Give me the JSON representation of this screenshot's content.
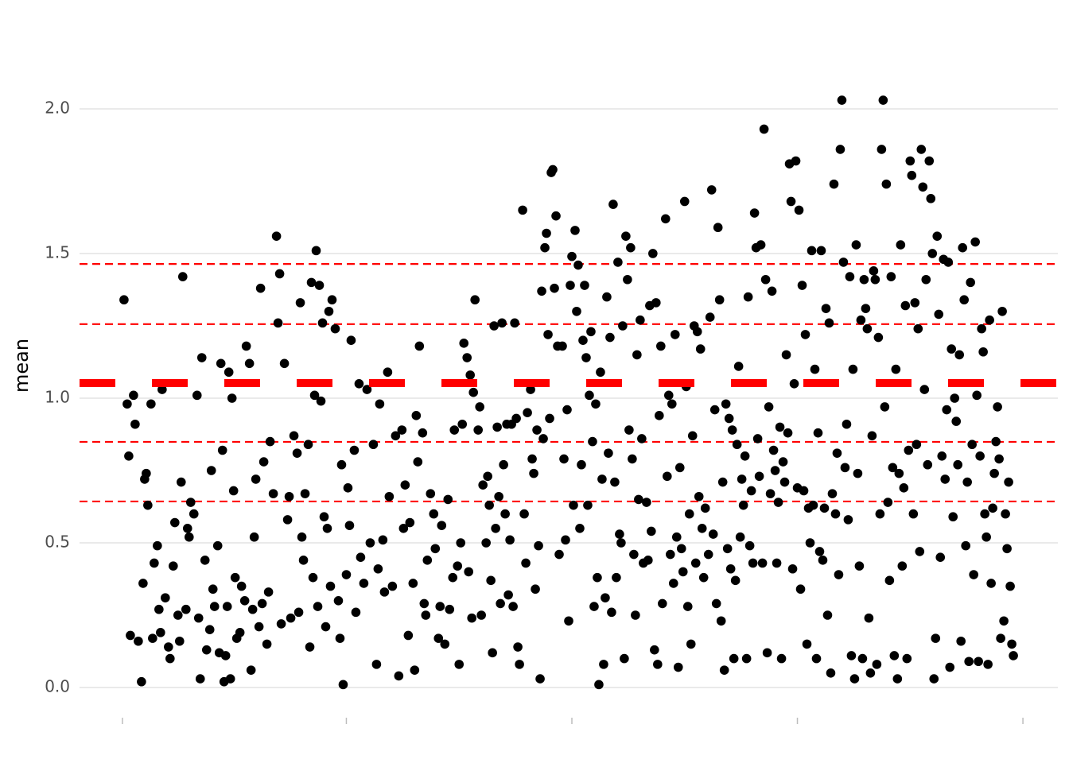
{
  "chart_data": {
    "type": "scatter",
    "y_label": "mean",
    "color": "#000000",
    "line_color": "#ff0000",
    "mean_line": 1.052,
    "hlines": [
      1.464,
      1.256,
      0.849,
      0.643
    ],
    "grid": true,
    "xlim": [
      -27,
      589
    ],
    "xticks": [
      0,
      141,
      283,
      425,
      567
    ],
    "ylim": [
      -0.1,
      2.27
    ],
    "yticks": [
      {
        "value": 0,
        "label": "0.0"
      },
      0.5,
      {
        "value": 1,
        "label": "1.0"
      },
      1.5,
      {
        "value": 2,
        "label": "2.0"
      }
    ],
    "x": [
      1,
      3,
      4,
      5,
      7,
      8,
      10,
      12,
      13,
      14,
      15,
      16,
      18,
      19,
      20,
      22,
      23,
      24,
      25,
      27,
      29,
      30,
      32,
      33,
      35,
      36,
      37,
      38,
      40,
      41,
      42,
      43,
      45,
      47,
      48,
      49,
      50,
      52,
      53,
      55,
      56,
      57,
      58,
      60,
      61,
      62,
      63,
      64,
      65,
      66,
      67,
      68,
      69,
      70,
      71,
      72,
      74,
      75,
      77,
      78,
      80,
      81,
      82,
      83,
      84,
      86,
      87,
      88,
      89,
      91,
      92,
      93,
      95,
      97,
      98,
      99,
      100,
      102,
      104,
      105,
      106,
      108,
      110,
      111,
      112,
      113,
      114,
      115,
      117,
      118,
      119,
      120,
      121,
      122,
      123,
      124,
      125,
      126,
      127,
      128,
      129,
      130,
      131,
      132,
      134,
      136,
      137,
      138,
      139,
      141,
      142,
      143,
      144,
      146,
      147,
      149,
      150,
      152,
      154,
      156,
      158,
      160,
      161,
      162,
      164,
      165,
      167,
      168,
      170,
      172,
      174,
      176,
      177,
      178,
      180,
      181,
      183,
      184,
      185,
      186,
      187,
      189,
      190,
      191,
      192,
      194,
      196,
      197,
      199,
      200,
      201,
      203,
      205,
      206,
      208,
      209,
      211,
      212,
      213,
      214,
      215,
      217,
      218,
      219,
      220,
      221,
      222,
      224,
      225,
      226,
      227,
      229,
      230,
      231,
      232,
      233,
      234,
      235,
      236,
      237,
      238,
      239,
      240,
      241,
      242,
      243,
      244,
      245,
      246,
      247,
      248,
      249,
      250,
      252,
      253,
      254,
      255,
      257,
      258,
      259,
      260,
      261,
      262,
      263,
      264,
      265,
      266,
      267,
      268,
      269,
      270,
      271,
      272,
      273,
      274,
      275,
      277,
      278,
      279,
      280,
      281,
      282,
      283,
      284,
      285,
      286,
      287,
      288,
      289,
      290,
      291,
      292,
      293,
      294,
      295,
      296,
      297,
      298,
      299,
      300,
      301,
      302,
      303,
      304,
      305,
      306,
      307,
      308,
      309,
      310,
      311,
      312,
      313,
      314,
      315,
      316,
      317,
      318,
      319,
      320,
      321,
      322,
      323,
      324,
      325,
      326,
      327,
      328,
      330,
      331,
      332,
      333,
      334,
      335,
      336,
      337,
      338,
      339,
      340,
      342,
      343,
      344,
      345,
      346,
      347,
      348,
      349,
      350,
      351,
      352,
      353,
      354,
      355,
      356,
      357,
      358,
      359,
      360,
      361,
      362,
      363,
      364,
      365,
      366,
      367,
      369,
      370,
      371,
      372,
      373,
      374,
      375,
      376,
      377,
      378,
      379,
      380,
      381,
      382,
      383,
      384,
      385,
      386,
      387,
      388,
      389,
      390,
      391,
      392,
      393,
      394,
      395,
      396,
      397,
      398,
      399,
      400,
      401,
      402,
      403,
      404,
      405,
      406,
      407,
      408,
      409,
      410,
      411,
      412,
      413,
      414,
      415,
      416,
      417,
      418,
      419,
      420,
      421,
      422,
      423,
      424,
      425,
      426,
      427,
      428,
      429,
      430,
      431,
      432,
      433,
      434,
      435,
      436,
      437,
      438,
      439,
      440,
      441,
      442,
      443,
      444,
      445,
      446,
      447,
      448,
      449,
      450,
      451,
      452,
      453,
      454,
      455,
      456,
      457,
      458,
      459,
      460,
      461,
      462,
      463,
      464,
      465,
      466,
      467,
      468,
      469,
      470,
      471,
      472,
      473,
      474,
      475,
      476,
      477,
      478,
      479,
      480,
      481,
      482,
      483,
      484,
      485,
      486,
      487,
      488,
      489,
      490,
      491,
      492,
      493,
      494,
      495,
      496,
      497,
      498,
      499,
      500,
      501,
      502,
      503,
      504,
      505,
      506,
      507,
      508,
      509,
      510,
      511,
      512,
      513,
      514,
      515,
      516,
      517,
      518,
      519,
      520,
      521,
      522,
      523,
      524,
      525,
      526,
      527,
      528,
      529,
      530,
      531,
      532,
      533,
      534,
      535,
      536,
      537,
      538,
      539,
      540,
      541,
      542,
      543,
      544,
      545,
      546,
      547,
      548,
      549,
      550,
      551,
      552,
      553,
      554,
      555,
      556,
      557,
      558,
      559,
      560,
      561
    ],
    "values": [
      1.34,
      0.98,
      0.8,
      0.18,
      1.01,
      0.91,
      0.16,
      0.02,
      0.36,
      0.72,
      0.74,
      0.63,
      0.98,
      0.17,
      0.43,
      0.49,
      0.27,
      0.19,
      1.03,
      0.31,
      0.14,
      0.1,
      0.42,
      0.57,
      0.25,
      0.16,
      0.71,
      1.42,
      0.27,
      0.55,
      0.52,
      0.64,
      0.6,
      1.01,
      0.24,
      0.03,
      1.14,
      0.44,
      0.13,
      0.2,
      0.75,
      0.34,
      0.28,
      0.49,
      0.12,
      1.12,
      0.82,
      0.02,
      0.11,
      0.28,
      1.09,
      0.03,
      1.0,
      0.68,
      0.38,
      0.17,
      0.19,
      0.35,
      0.3,
      1.18,
      1.12,
      0.06,
      0.27,
      0.52,
      0.72,
      0.21,
      1.38,
      0.29,
      0.78,
      0.15,
      0.33,
      0.85,
      0.67,
      1.56,
      1.26,
      1.43,
      0.22,
      1.12,
      0.58,
      0.66,
      0.24,
      0.87,
      0.81,
      0.26,
      1.33,
      0.52,
      0.44,
      0.67,
      0.84,
      0.14,
      1.4,
      0.38,
      1.01,
      1.51,
      0.28,
      1.39,
      0.99,
      1.26,
      0.59,
      0.21,
      0.55,
      1.3,
      0.35,
      1.34,
      1.24,
      0.3,
      0.17,
      0.77,
      0.01,
      0.39,
      0.69,
      0.56,
      1.2,
      0.82,
      0.26,
      1.05,
      0.45,
      0.36,
      1.03,
      0.5,
      0.84,
      0.08,
      0.41,
      0.98,
      0.51,
      0.33,
      1.09,
      0.66,
      0.35,
      0.87,
      0.04,
      0.89,
      0.55,
      0.7,
      0.18,
      0.57,
      0.36,
      0.06,
      0.94,
      0.78,
      1.18,
      0.88,
      0.29,
      0.25,
      0.44,
      0.67,
      0.6,
      0.48,
      0.17,
      0.28,
      0.56,
      0.15,
      0.65,
      0.27,
      0.38,
      0.89,
      0.42,
      0.08,
      0.5,
      0.91,
      1.19,
      1.14,
      0.4,
      1.08,
      0.24,
      1.02,
      1.34,
      0.89,
      0.97,
      0.25,
      0.7,
      0.5,
      0.73,
      0.63,
      0.37,
      0.12,
      1.25,
      0.55,
      0.9,
      0.66,
      0.29,
      1.26,
      0.77,
      0.6,
      0.91,
      0.32,
      0.51,
      0.91,
      0.28,
      1.26,
      0.93,
      0.14,
      0.08,
      1.65,
      0.6,
      0.43,
      0.95,
      1.03,
      0.79,
      0.74,
      0.34,
      0.89,
      0.49,
      0.03,
      1.37,
      0.86,
      1.52,
      1.57,
      1.22,
      0.93,
      1.78,
      1.79,
      1.38,
      1.63,
      1.18,
      0.46,
      1.18,
      0.79,
      0.51,
      0.96,
      0.23,
      1.39,
      1.49,
      0.63,
      1.58,
      1.3,
      1.46,
      0.55,
      0.77,
      1.2,
      1.39,
      1.14,
      0.63,
      1.01,
      1.23,
      0.85,
      0.28,
      0.98,
      0.38,
      0.01,
      1.09,
      0.72,
      0.08,
      0.31,
      1.35,
      0.81,
      1.21,
      0.26,
      1.67,
      0.71,
      0.38,
      1.47,
      0.53,
      0.5,
      1.25,
      0.1,
      1.56,
      1.41,
      0.89,
      1.52,
      0.79,
      0.46,
      0.25,
      1.15,
      0.65,
      1.27,
      0.86,
      0.43,
      0.64,
      0.44,
      1.32,
      0.54,
      1.5,
      0.13,
      1.33,
      0.08,
      0.94,
      1.18,
      0.29,
      1.62,
      0.73,
      1.01,
      0.46,
      0.98,
      0.36,
      1.22,
      0.52,
      0.07,
      0.76,
      0.48,
      0.4,
      1.68,
      1.04,
      0.28,
      0.6,
      0.15,
      0.87,
      1.25,
      0.43,
      1.23,
      0.66,
      1.17,
      0.55,
      0.38,
      0.62,
      0.46,
      1.28,
      1.72,
      0.53,
      0.96,
      0.29,
      1.59,
      1.34,
      0.23,
      0.71,
      0.06,
      0.98,
      0.48,
      0.93,
      0.41,
      0.89,
      0.1,
      0.37,
      0.84,
      1.11,
      0.52,
      0.72,
      0.63,
      0.8,
      0.1,
      1.35,
      0.49,
      0.68,
      0.43,
      1.64,
      1.52,
      0.86,
      0.73,
      1.53,
      0.43,
      1.93,
      1.41,
      0.12,
      0.97,
      0.67,
      1.37,
      0.82,
      0.75,
      0.43,
      0.64,
      0.9,
      0.1,
      0.78,
      0.71,
      1.15,
      0.88,
      1.81,
      1.68,
      0.41,
      1.05,
      1.82,
      0.69,
      1.65,
      0.34,
      1.39,
      0.68,
      1.22,
      0.15,
      0.62,
      0.5,
      1.51,
      0.63,
      1.1,
      0.1,
      0.88,
      0.47,
      1.51,
      0.44,
      0.62,
      1.31,
      0.25,
      1.26,
      0.05,
      0.67,
      1.74,
      0.6,
      0.81,
      0.39,
      1.86,
      2.03,
      1.47,
      0.76,
      0.91,
      0.58,
      1.42,
      0.11,
      1.1,
      0.03,
      1.53,
      0.74,
      0.42,
      1.27,
      0.1,
      1.41,
      1.31,
      1.24,
      0.24,
      0.05,
      0.87,
      1.44,
      1.41,
      0.08,
      1.21,
      0.6,
      1.86,
      2.03,
      0.97,
      1.74,
      0.64,
      0.37,
      1.42,
      0.76,
      0.11,
      1.1,
      0.03,
      0.74,
      1.53,
      0.42,
      0.69,
      1.32,
      0.1,
      0.82,
      1.82,
      1.77,
      0.6,
      1.33,
      0.84,
      1.24,
      0.47,
      1.86,
      1.73,
      1.03,
      1.41,
      0.77,
      1.82,
      1.69,
      1.5,
      0.03,
      0.17,
      1.56,
      1.29,
      0.45,
      0.8,
      1.48,
      0.72,
      0.96,
      1.47,
      0.07,
      1.17,
      0.59,
      1.0,
      0.92,
      0.77,
      1.15,
      0.16,
      1.52,
      1.34,
      0.49,
      0.71,
      0.09,
      1.4,
      0.84,
      0.39,
      1.54,
      1.01,
      0.09,
      0.8,
      1.24,
      1.16,
      0.6,
      0.52,
      0.08,
      1.27,
      0.36,
      0.62,
      0.74,
      0.85,
      0.97,
      0.79,
      0.17,
      1.3,
      0.23,
      0.6,
      0.48,
      0.71,
      0.35,
      0.15,
      0.11
    ]
  }
}
